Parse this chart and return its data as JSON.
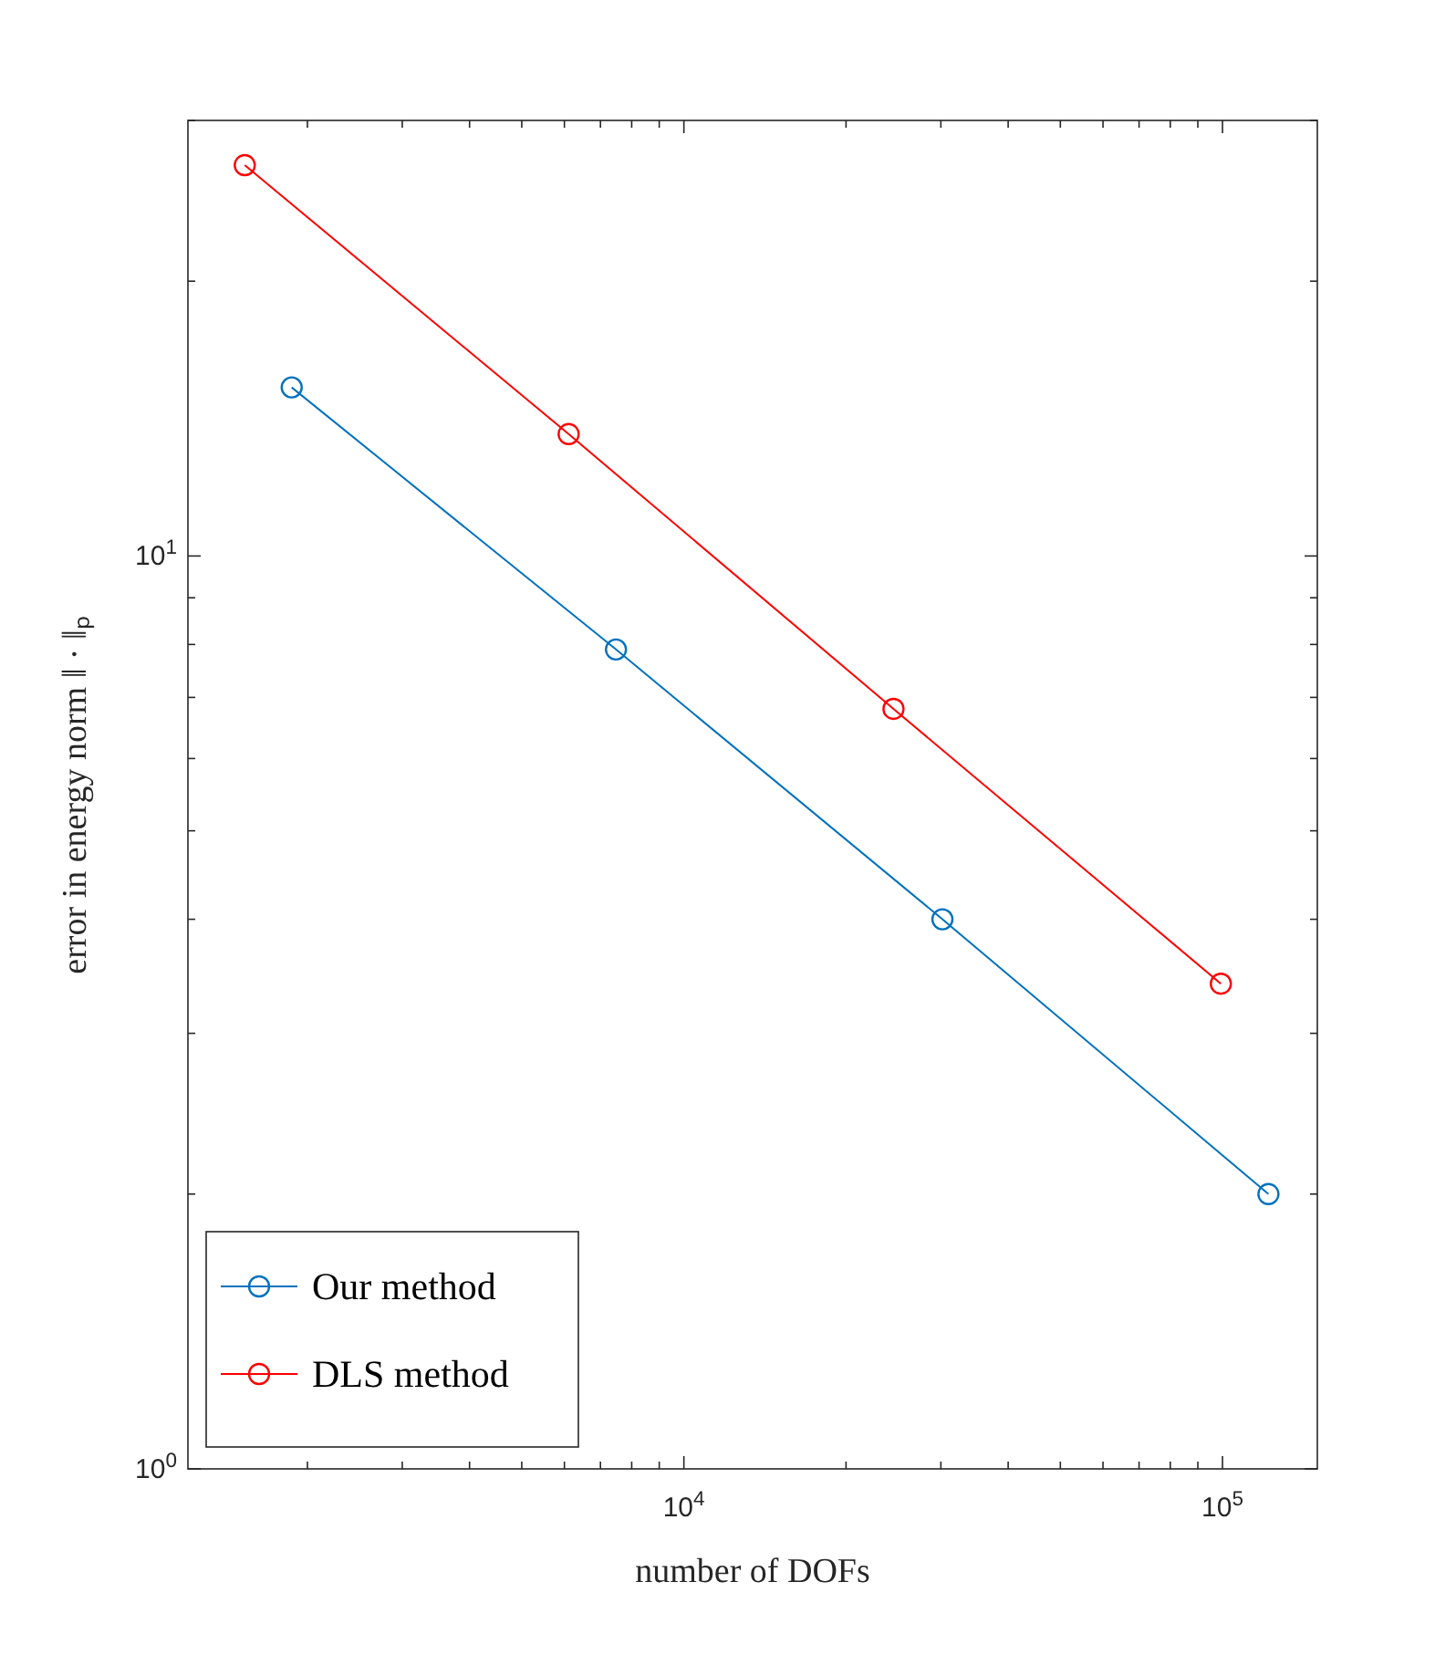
{
  "chart_data": {
    "type": "line",
    "xlabel": "number of DOFs",
    "ylabel": "error in energy norm ‖ · ‖ₚ",
    "log": "xy",
    "grid": false,
    "legend": "bottom left",
    "marker": "circle",
    "line_style": "solid",
    "xlim": [
      1200,
      150000
    ],
    "ylim": [
      1,
      30
    ],
    "xticks": [
      {
        "value": 2000,
        "label": null
      },
      {
        "value": 3000,
        "label": null
      },
      {
        "value": 4000,
        "label": null
      },
      {
        "value": 5000,
        "label": null
      },
      {
        "value": 6000,
        "label": null
      },
      {
        "value": 7000,
        "label": null
      },
      {
        "value": 8000,
        "label": null
      },
      {
        "value": 9000,
        "label": null
      },
      {
        "value": 10000,
        "label": "10$^{4}$"
      },
      {
        "value": 20000,
        "label": null
      },
      {
        "value": 30000,
        "label": null
      },
      {
        "value": 40000,
        "label": null
      },
      {
        "value": 50000,
        "label": null
      },
      {
        "value": 60000,
        "label": null
      },
      {
        "value": 70000,
        "label": null
      },
      {
        "value": 80000,
        "label": null
      },
      {
        "value": 90000,
        "label": null
      },
      {
        "value": 100000,
        "label": "10$^{5}$"
      }
    ],
    "yticks": [
      {
        "value": 1,
        "label": "10$^{0}$"
      },
      {
        "value": 2,
        "label": null
      },
      {
        "value": 3,
        "label": null
      },
      {
        "value": 4,
        "label": null
      },
      {
        "value": 5,
        "label": null
      },
      {
        "value": 6,
        "label": null
      },
      {
        "value": 7,
        "label": null
      },
      {
        "value": 8,
        "label": null
      },
      {
        "value": 9,
        "label": null
      },
      {
        "value": 10,
        "label": "10$^{1}$"
      },
      {
        "value": 20,
        "label": null
      },
      {
        "value": 30,
        "label": null
      }
    ],
    "series": [
      {
        "name": "Our method",
        "color": "#0072bd",
        "x": [
          1870,
          7480,
          30200,
          121700
        ],
        "values": [
          15.3,
          7.9,
          4.0,
          2.0
        ]
      },
      {
        "name": "DLS method",
        "color": "#ff0000",
        "x": [
          1530,
          6110,
          24500,
          99300
        ],
        "values": [
          26.8,
          13.6,
          6.8,
          3.4
        ]
      }
    ]
  }
}
